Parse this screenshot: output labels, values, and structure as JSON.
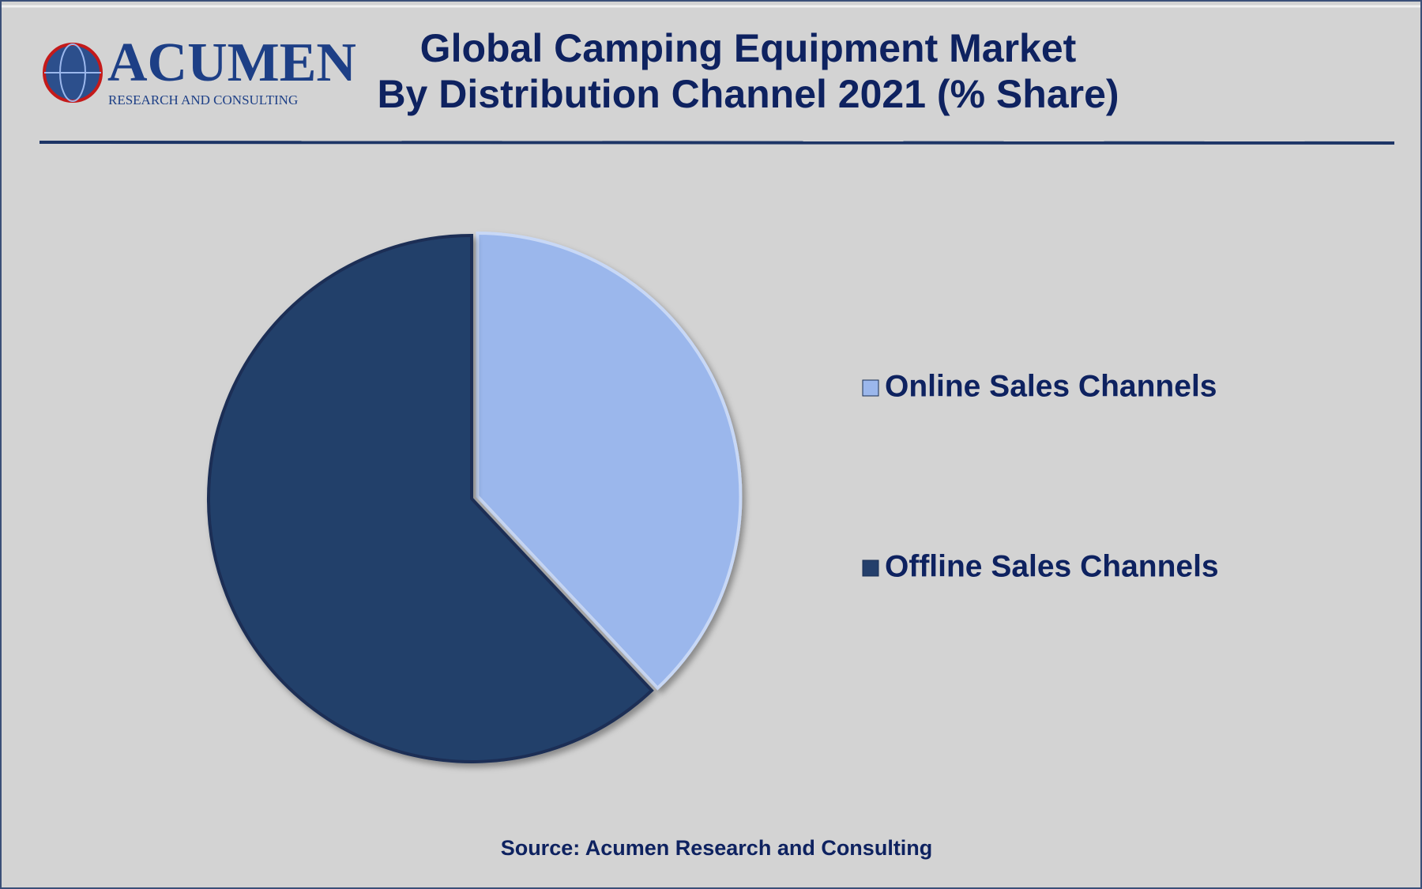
{
  "logo": {
    "name": "ACUMEN",
    "tagline": "RESEARCH AND CONSULTING"
  },
  "chart_data": {
    "type": "pie",
    "title": "Global Camping Equipment Market",
    "subtitle": "By Distribution Channel 2021 (% Share)",
    "categories": [
      "Online Sales Channels",
      "Offline Sales Channels"
    ],
    "values": [
      38,
      62
    ],
    "colors": [
      "#9bb7ec",
      "#243f6b"
    ],
    "legend": "right",
    "source": "Source: Acumen Research and Consulting"
  }
}
